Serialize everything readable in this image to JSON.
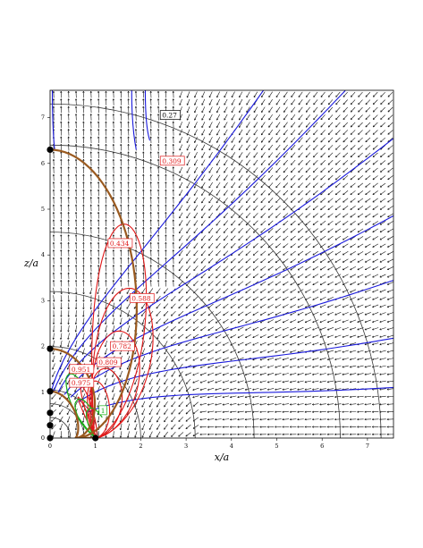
{
  "chart_data": {
    "type": "line",
    "xlabel": "x/a",
    "ylabel": "z/a",
    "xlim": [
      0,
      7.6
    ],
    "ylim": [
      0,
      7.6
    ],
    "x_ticks": [
      "0",
      "1",
      "2",
      "3",
      "4",
      "5",
      "6",
      "7"
    ],
    "y_ticks": [
      "0",
      "1",
      "2",
      "3",
      "4",
      "5",
      "6",
      "7"
    ],
    "grid": false,
    "vector_field": true,
    "colors": {
      "circles": "#3a3a3a",
      "blue_lines": "#1a1adc",
      "red_curves": "#e01818",
      "green_curves": "#18b018",
      "brown_boundary": "#9a5a20",
      "arrows": "#111111",
      "points": "#000000"
    },
    "circle_radii": [
      0.45,
      0.75,
      1.05,
      2.0,
      3.2,
      4.5,
      6.4,
      7.3
    ],
    "boundary_radii": [
      6.3,
      1.95,
      1.02
    ],
    "marked_points": [
      {
        "x": 0,
        "y": 6.3
      },
      {
        "x": 0,
        "y": 1.95
      },
      {
        "x": 0,
        "y": 1.02
      },
      {
        "x": 0,
        "y": 0.55
      },
      {
        "x": 0,
        "y": 0.28
      },
      {
        "x": 0,
        "y": 0.0
      },
      {
        "x": 1,
        "y": 0.0
      }
    ],
    "annotations": [
      {
        "text": "0.27",
        "x": 2.45,
        "y": 7.0,
        "color": "black"
      },
      {
        "text": "0.309",
        "x": 2.45,
        "y": 6.0,
        "color": "red"
      },
      {
        "text": "0.434",
        "x": 1.3,
        "y": 4.2,
        "color": "red"
      },
      {
        "text": "0.588",
        "x": 1.78,
        "y": 3.0,
        "color": "red"
      },
      {
        "text": "0.782",
        "x": 1.35,
        "y": 1.95,
        "color": "red"
      },
      {
        "text": "0.809",
        "x": 1.05,
        "y": 1.6,
        "color": "red"
      },
      {
        "text": "0.951",
        "x": 0.45,
        "y": 1.45,
        "color": "red"
      },
      {
        "text": "0.975",
        "x": 0.45,
        "y": 1.15,
        "color": "red"
      },
      {
        "text": "1",
        "x": 1.1,
        "y": 0.55,
        "color": "green"
      }
    ]
  }
}
